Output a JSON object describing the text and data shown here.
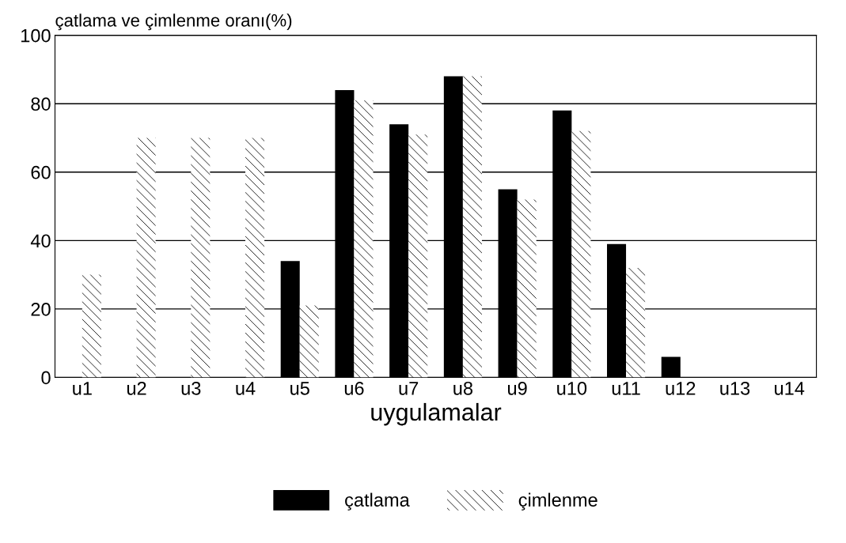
{
  "chart_data": {
    "type": "bar",
    "ylabel": "çatlama ve çimlenme oranı(%)",
    "xlabel": "uygulamalar",
    "categories": [
      "u1",
      "u2",
      "u3",
      "u4",
      "u5",
      "u6",
      "u7",
      "u8",
      "u9",
      "u10",
      "u11",
      "u12",
      "u13",
      "u14"
    ],
    "series": [
      {
        "name": "çatlama",
        "color": "#000000",
        "values": [
          0,
          0,
          0,
          0,
          34,
          84,
          74,
          88,
          55,
          78,
          39,
          6,
          0,
          0
        ]
      },
      {
        "name": "çimlenme",
        "color": "#ffffff",
        "values": [
          30,
          70,
          70,
          70,
          21,
          81,
          71,
          88,
          52,
          72,
          32,
          0,
          0,
          0
        ]
      }
    ],
    "ylim": [
      0,
      100
    ],
    "yticks": [
      0,
      20,
      40,
      60,
      80,
      100
    ],
    "grid": "y",
    "legend": "bottom"
  }
}
